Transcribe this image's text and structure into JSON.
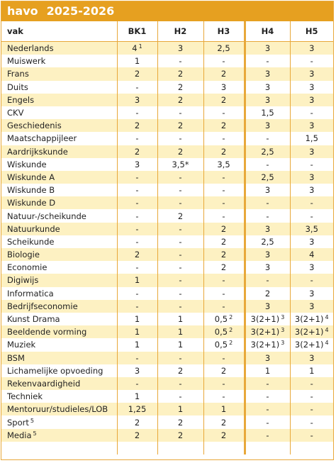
{
  "header": {
    "title": "havo",
    "years": "2025-2026"
  },
  "table": {
    "columns": [
      "vak",
      "BK1",
      "H2",
      "H3",
      "H4",
      "H5"
    ],
    "rows": [
      [
        {
          "text": "Nederlands"
        },
        {
          "text": "4",
          "sup": "1"
        },
        {
          "text": "3"
        },
        {
          "text": "2,5"
        },
        {
          "text": "3"
        },
        {
          "text": "3"
        }
      ],
      [
        {
          "text": "Muiswerk"
        },
        {
          "text": "1"
        },
        {
          "text": "-"
        },
        {
          "text": "-"
        },
        {
          "text": "-"
        },
        {
          "text": "-"
        }
      ],
      [
        {
          "text": "Frans"
        },
        {
          "text": "2"
        },
        {
          "text": "2"
        },
        {
          "text": "2"
        },
        {
          "text": "3"
        },
        {
          "text": "3"
        }
      ],
      [
        {
          "text": "Duits"
        },
        {
          "text": "-"
        },
        {
          "text": "2"
        },
        {
          "text": "3"
        },
        {
          "text": "3"
        },
        {
          "text": "3"
        }
      ],
      [
        {
          "text": "Engels"
        },
        {
          "text": "3"
        },
        {
          "text": "2"
        },
        {
          "text": "2"
        },
        {
          "text": "3"
        },
        {
          "text": "3"
        }
      ],
      [
        {
          "text": "CKV"
        },
        {
          "text": "-"
        },
        {
          "text": "-"
        },
        {
          "text": "-"
        },
        {
          "text": "1,5"
        },
        {
          "text": "-"
        }
      ],
      [
        {
          "text": "Geschiedenis"
        },
        {
          "text": "2"
        },
        {
          "text": "2"
        },
        {
          "text": "2"
        },
        {
          "text": "3"
        },
        {
          "text": "3"
        }
      ],
      [
        {
          "text": "Maatschappijleer"
        },
        {
          "text": "-"
        },
        {
          "text": "-"
        },
        {
          "text": "-"
        },
        {
          "text": "-"
        },
        {
          "text": "1,5"
        }
      ],
      [
        {
          "text": "Aardrijkskunde"
        },
        {
          "text": "2"
        },
        {
          "text": "2"
        },
        {
          "text": "2"
        },
        {
          "text": "2,5"
        },
        {
          "text": "3"
        }
      ],
      [
        {
          "text": "Wiskunde"
        },
        {
          "text": "3"
        },
        {
          "text": "3,5*"
        },
        {
          "text": "3,5"
        },
        {
          "text": "-"
        },
        {
          "text": "-"
        }
      ],
      [
        {
          "text": "Wiskunde A"
        },
        {
          "text": "-"
        },
        {
          "text": "-"
        },
        {
          "text": "-"
        },
        {
          "text": "2,5"
        },
        {
          "text": "3"
        }
      ],
      [
        {
          "text": "Wiskunde B"
        },
        {
          "text": "-"
        },
        {
          "text": "-"
        },
        {
          "text": "-"
        },
        {
          "text": "3"
        },
        {
          "text": "3"
        }
      ],
      [
        {
          "text": "Wiskunde D"
        },
        {
          "text": "-"
        },
        {
          "text": "-"
        },
        {
          "text": "-"
        },
        {
          "text": "-"
        },
        {
          "text": "-"
        }
      ],
      [
        {
          "text": "Natuur-/scheikunde"
        },
        {
          "text": "-"
        },
        {
          "text": "2"
        },
        {
          "text": "-"
        },
        {
          "text": "-"
        },
        {
          "text": "-"
        }
      ],
      [
        {
          "text": "Natuurkunde"
        },
        {
          "text": "-"
        },
        {
          "text": "-"
        },
        {
          "text": "2"
        },
        {
          "text": "3"
        },
        {
          "text": "3,5"
        }
      ],
      [
        {
          "text": "Scheikunde"
        },
        {
          "text": "-"
        },
        {
          "text": "-"
        },
        {
          "text": "2"
        },
        {
          "text": "2,5"
        },
        {
          "text": "3"
        }
      ],
      [
        {
          "text": "Biologie"
        },
        {
          "text": "2"
        },
        {
          "text": "-"
        },
        {
          "text": "2"
        },
        {
          "text": "3"
        },
        {
          "text": "4"
        }
      ],
      [
        {
          "text": "Economie"
        },
        {
          "text": "-"
        },
        {
          "text": "-"
        },
        {
          "text": "2"
        },
        {
          "text": "3"
        },
        {
          "text": "3"
        }
      ],
      [
        {
          "text": "Digiwijs"
        },
        {
          "text": "1"
        },
        {
          "text": "-"
        },
        {
          "text": "-"
        },
        {
          "text": "-"
        },
        {
          "text": "-"
        }
      ],
      [
        {
          "text": "Informatica"
        },
        {
          "text": "-"
        },
        {
          "text": "-"
        },
        {
          "text": "-"
        },
        {
          "text": "2"
        },
        {
          "text": "3"
        }
      ],
      [
        {
          "text": "Bedrijfseconomie"
        },
        {
          "text": "-"
        },
        {
          "text": "-"
        },
        {
          "text": "-"
        },
        {
          "text": "3"
        },
        {
          "text": "3"
        }
      ],
      [
        {
          "text": "Kunst Drama"
        },
        {
          "text": "1"
        },
        {
          "text": "1"
        },
        {
          "text": "0,5",
          "sup": "2"
        },
        {
          "text": "3(2+1)",
          "sup": "3"
        },
        {
          "text": "3(2+1)",
          "sup": "4"
        }
      ],
      [
        {
          "text": "Beeldende vorming"
        },
        {
          "text": "1"
        },
        {
          "text": "1"
        },
        {
          "text": "0,5",
          "sup": "2"
        },
        {
          "text": "3(2+1)",
          "sup": "3"
        },
        {
          "text": "3(2+1)",
          "sup": "4"
        }
      ],
      [
        {
          "text": "Muziek"
        },
        {
          "text": "1"
        },
        {
          "text": "1"
        },
        {
          "text": "0,5",
          "sup": "2"
        },
        {
          "text": "3(2+1)",
          "sup": "3"
        },
        {
          "text": "3(2+1)",
          "sup": "4"
        }
      ],
      [
        {
          "text": "BSM"
        },
        {
          "text": "-"
        },
        {
          "text": "-"
        },
        {
          "text": "-"
        },
        {
          "text": "3"
        },
        {
          "text": "3"
        }
      ],
      [
        {
          "text": "Lichamelijke opvoeding"
        },
        {
          "text": "3"
        },
        {
          "text": "2"
        },
        {
          "text": "2"
        },
        {
          "text": "1"
        },
        {
          "text": "1"
        }
      ],
      [
        {
          "text": "Rekenvaardigheid"
        },
        {
          "text": "-"
        },
        {
          "text": "-"
        },
        {
          "text": "-"
        },
        {
          "text": "-"
        },
        {
          "text": "-"
        }
      ],
      [
        {
          "text": "Techniek"
        },
        {
          "text": "1"
        },
        {
          "text": "-"
        },
        {
          "text": "-"
        },
        {
          "text": "-"
        },
        {
          "text": "-"
        }
      ],
      [
        {
          "text": "Mentoruur/studieles/LOB"
        },
        {
          "text": "1,25"
        },
        {
          "text": "1"
        },
        {
          "text": "1"
        },
        {
          "text": "-"
        },
        {
          "text": "-"
        }
      ],
      [
        {
          "text": "Sport",
          "sup": "5"
        },
        {
          "text": "2"
        },
        {
          "text": "2"
        },
        {
          "text": "2"
        },
        {
          "text": "-"
        },
        {
          "text": "-"
        }
      ],
      [
        {
          "text": "Media",
          "sup": "5"
        },
        {
          "text": "2"
        },
        {
          "text": "2"
        },
        {
          "text": "2"
        },
        {
          "text": "-"
        },
        {
          "text": "-"
        }
      ]
    ]
  }
}
